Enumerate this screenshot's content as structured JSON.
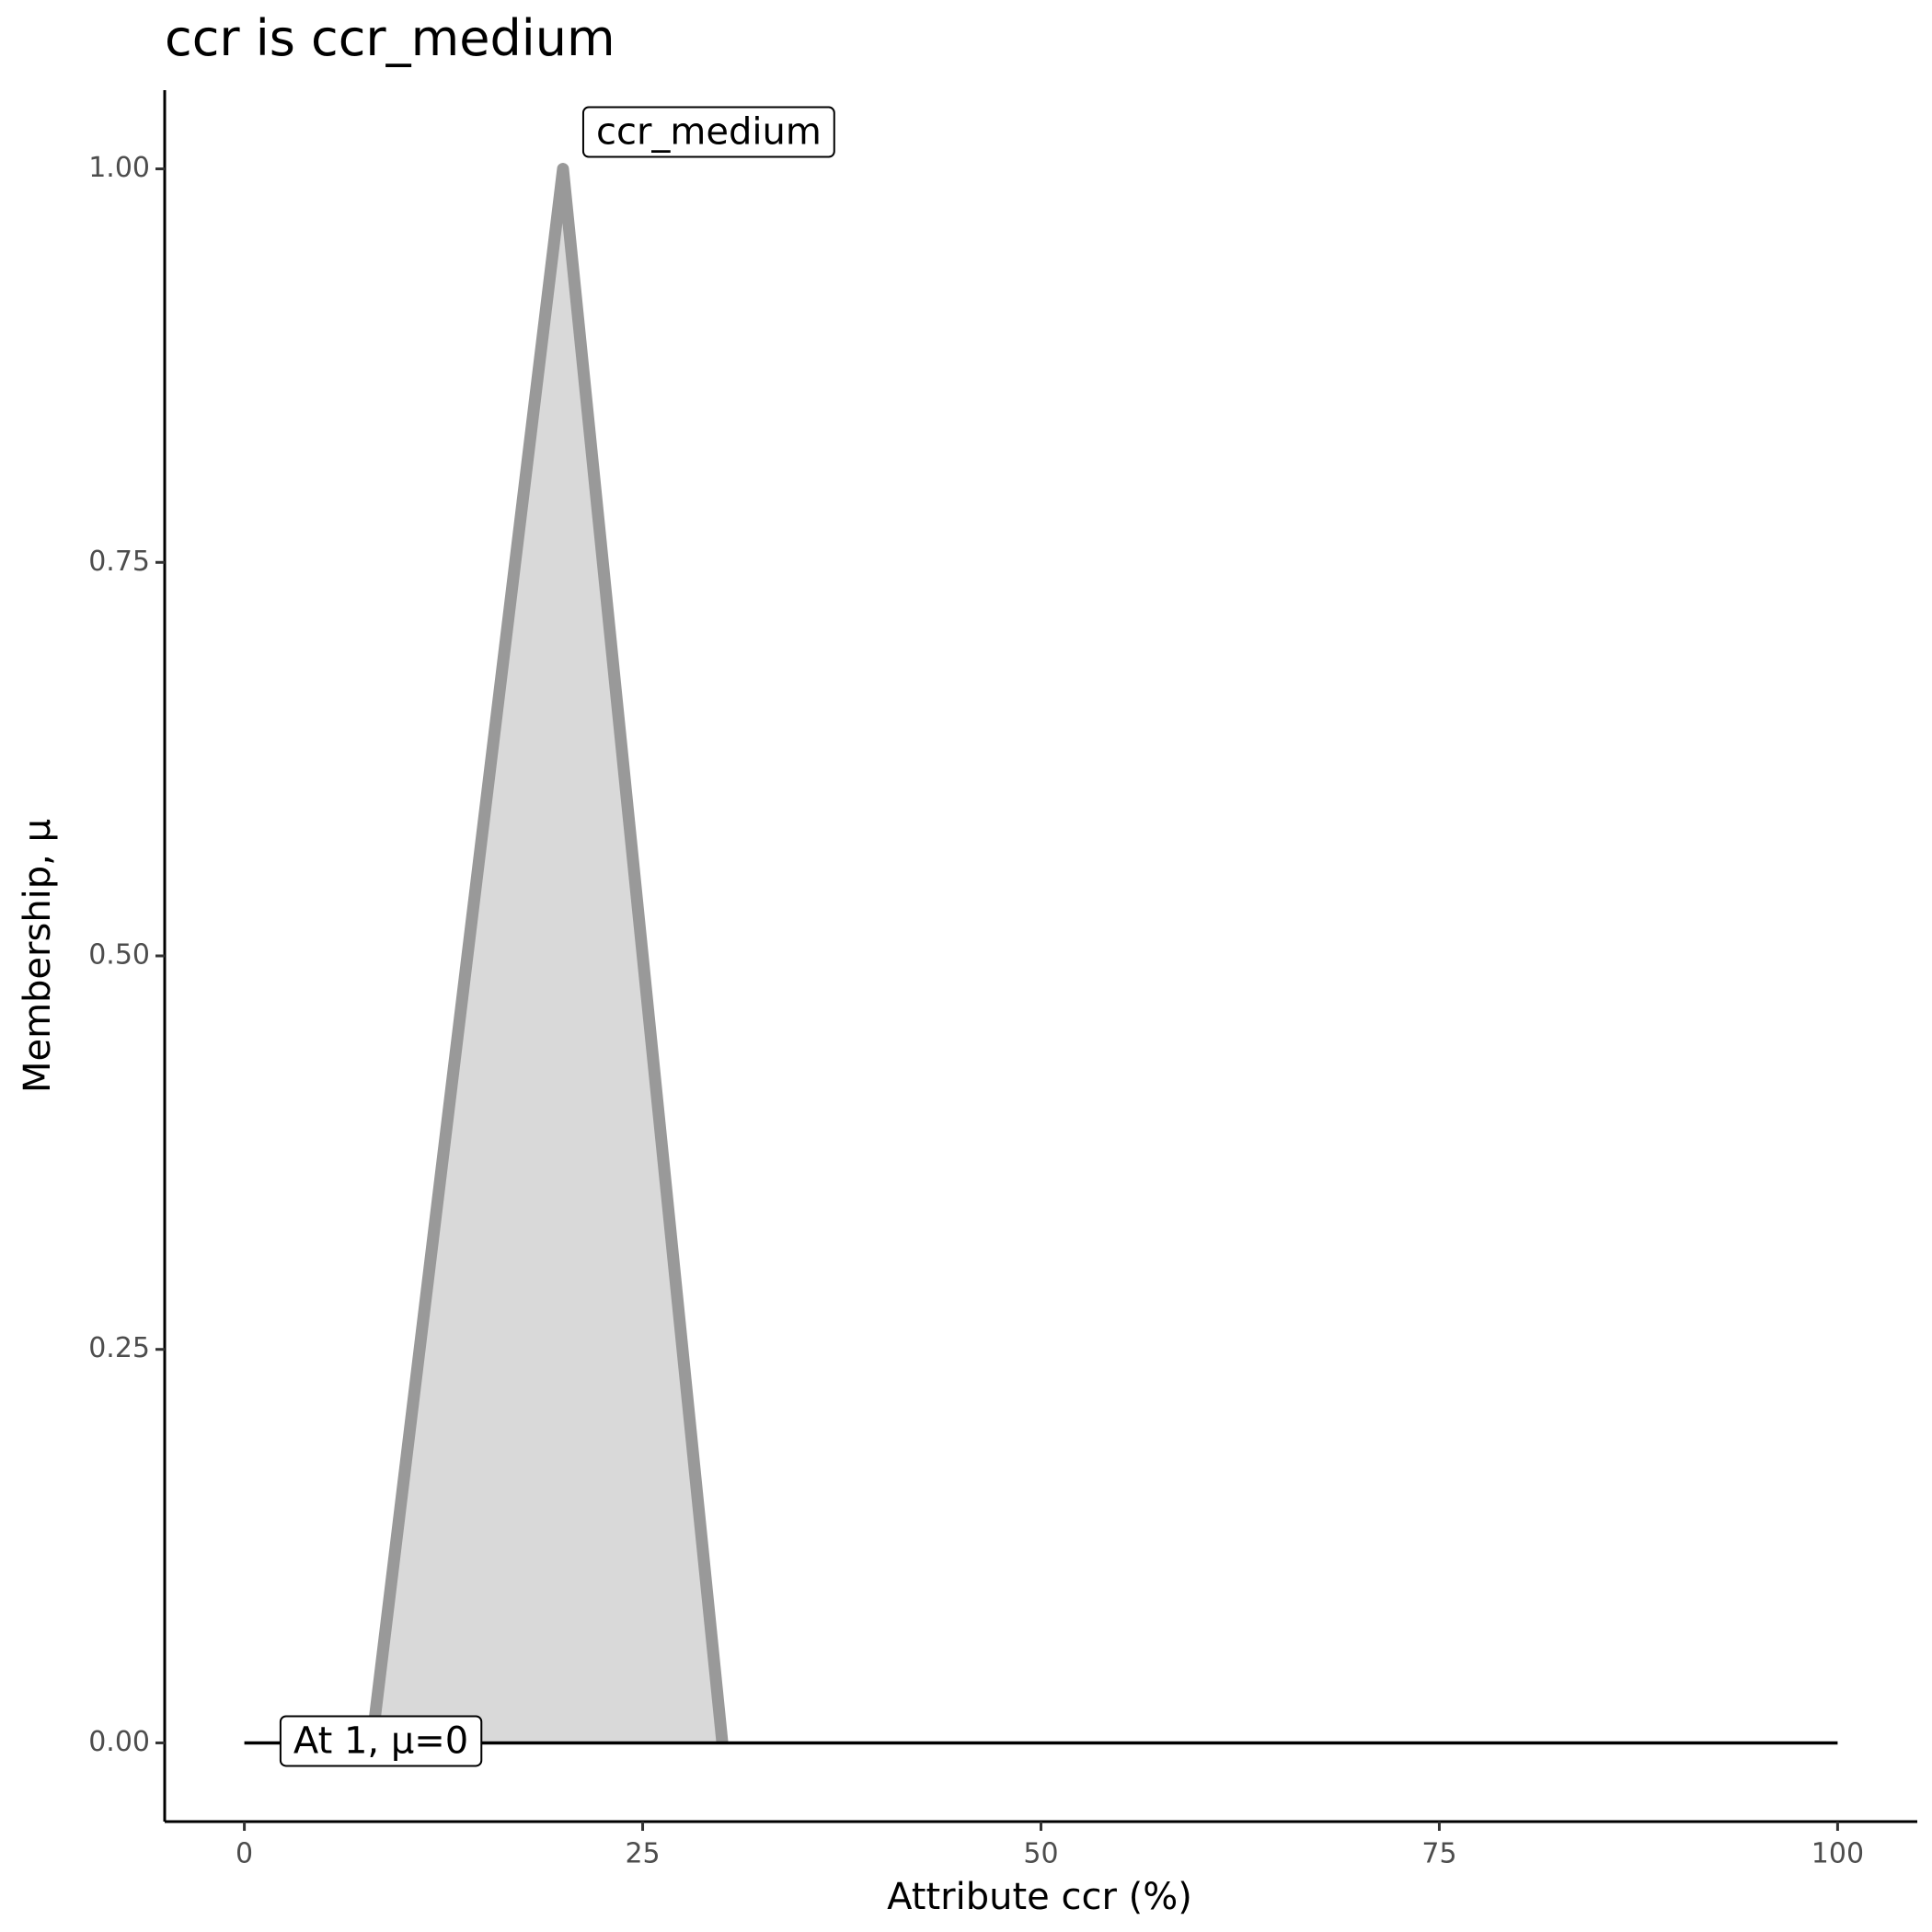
{
  "chart_data": {
    "type": "line",
    "title": "ccr is ccr_medium",
    "x_label": "Attribute ccr (%)",
    "y_label": "Membership, μ",
    "series": [
      {
        "x": [
          8,
          20,
          30
        ],
        "values": [
          0,
          1,
          0
        ],
        "color": "#999999",
        "fill": "#d9d9d9"
      }
    ],
    "reference_line": {
      "x": [
        0,
        100
      ],
      "values": [
        0,
        0
      ],
      "color": "#000000"
    },
    "annotations": [
      {
        "text": "ccr_medium",
        "x": 20,
        "y": 1
      },
      {
        "text": "At 1, μ=0",
        "x": 1,
        "y": 0
      }
    ],
    "xlim": [
      -5,
      105
    ],
    "xticks": [
      0,
      25,
      50,
      75,
      100
    ],
    "ylim": [
      -0.05,
      1.05
    ],
    "yticks": [
      {
        "value": 0,
        "label": "0.00"
      },
      {
        "value": 0.25,
        "label": "0.25"
      },
      {
        "value": 0.5,
        "label": "0.50"
      },
      {
        "value": 0.75,
        "label": "0.75"
      },
      {
        "value": 1,
        "label": "1.00"
      }
    ],
    "grid": false
  }
}
